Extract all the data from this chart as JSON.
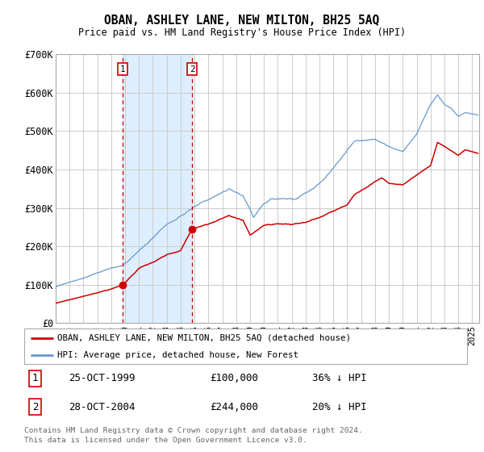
{
  "title": "OBAN, ASHLEY LANE, NEW MILTON, BH25 5AQ",
  "subtitle": "Price paid vs. HM Land Registry's House Price Index (HPI)",
  "legend1": "OBAN, ASHLEY LANE, NEW MILTON, BH25 5AQ (detached house)",
  "legend2": "HPI: Average price, detached house, New Forest",
  "transaction1_date": "25-OCT-1999",
  "transaction1_price": 100000,
  "transaction1_note": "36% ↓ HPI",
  "transaction2_date": "28-OCT-2004",
  "transaction2_price": 244000,
  "transaction2_note": "20% ↓ HPI",
  "footer": "Contains HM Land Registry data © Crown copyright and database right 2024.\nThis data is licensed under the Open Government Licence v3.0.",
  "line_color_property": "#cc0000",
  "line_color_hpi": "#6699cc",
  "shade_color": "#ddeeff",
  "dashed_color": "#cc0000",
  "marker_color": "#cc0000",
  "grid_color": "#cccccc",
  "background_color": "#ffffff",
  "ylim": [
    0,
    700000
  ],
  "yticks": [
    0,
    100000,
    200000,
    300000,
    400000,
    500000,
    600000,
    700000
  ],
  "ytick_labels": [
    "£0",
    "£100K",
    "£200K",
    "£300K",
    "£400K",
    "£500K",
    "£600K",
    "£700K"
  ],
  "t1": 1999.8333,
  "t2": 2004.8333,
  "xlim_left": 1995.0,
  "xlim_right": 2025.5
}
